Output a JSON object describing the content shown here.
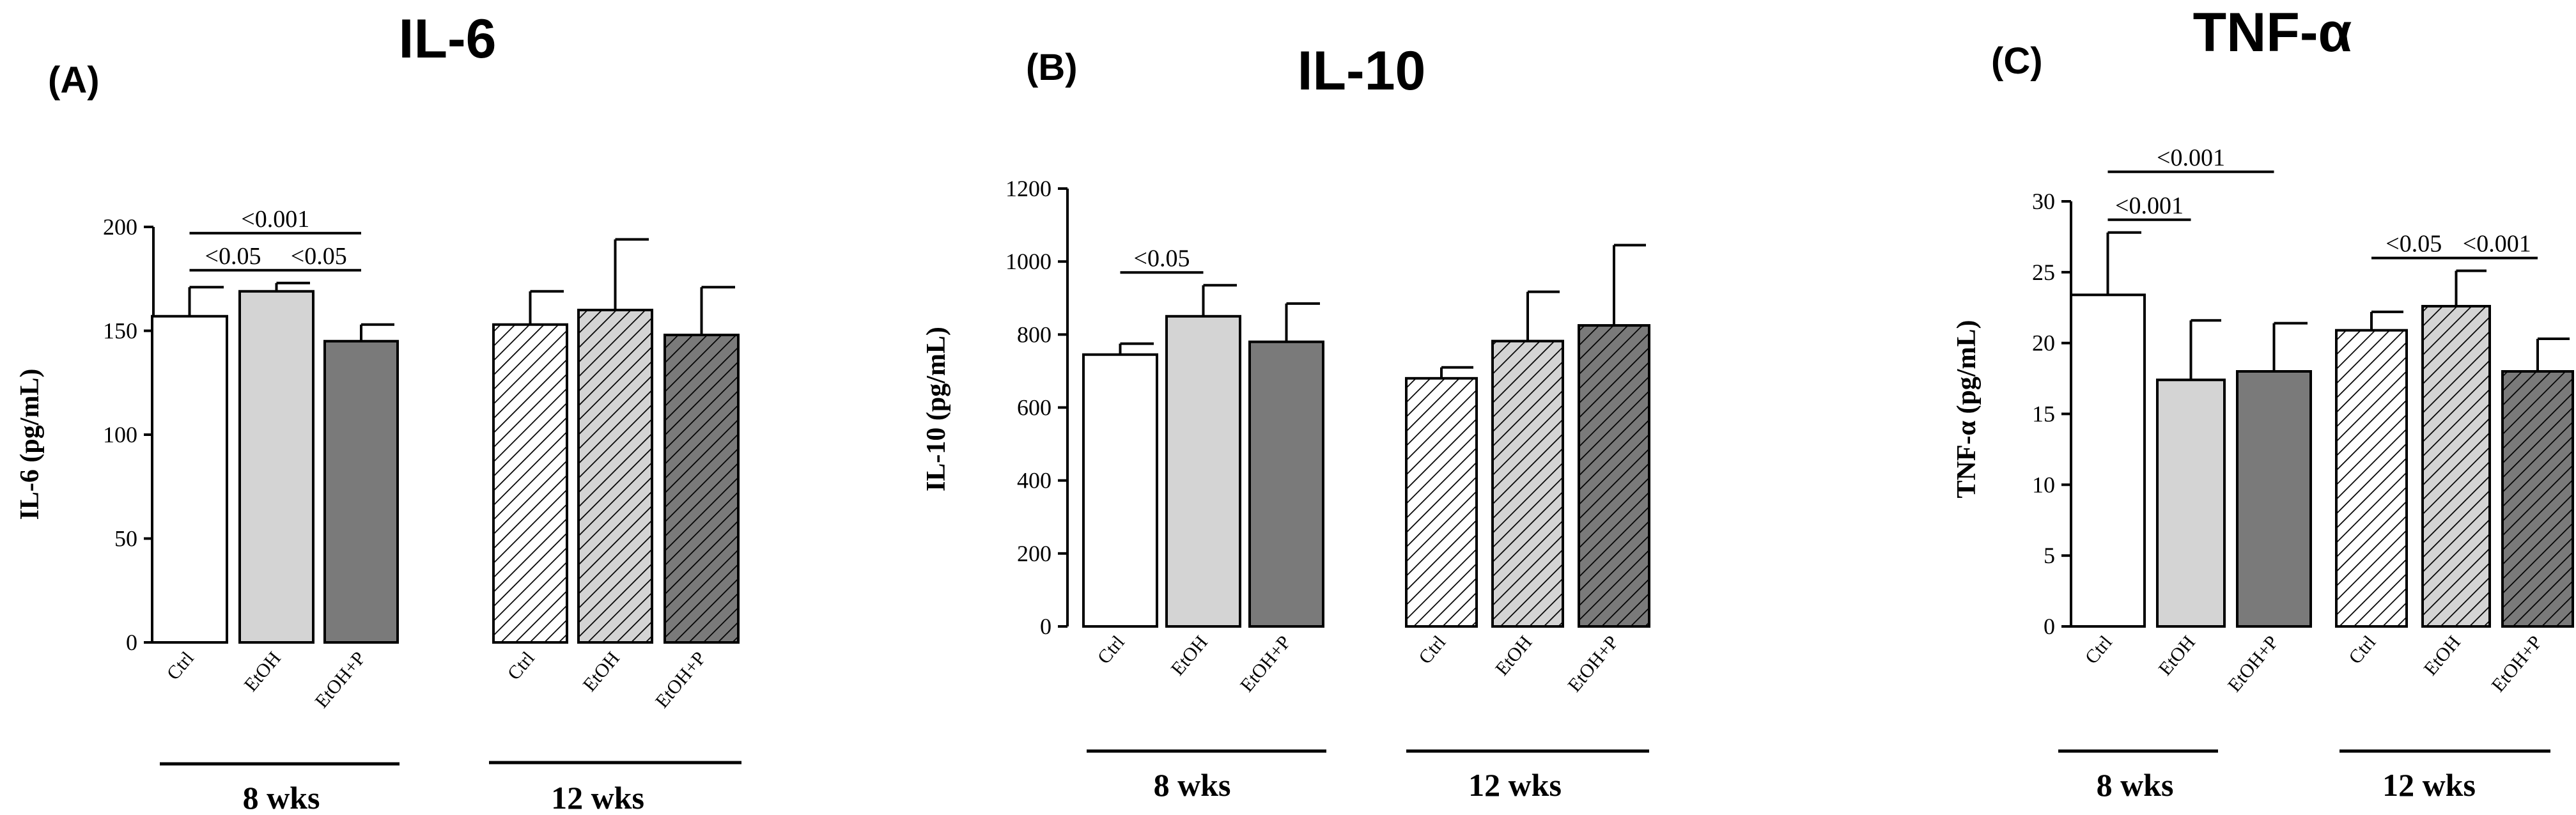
{
  "chart_data": [
    {
      "type": "bar",
      "panel_label": "(A)",
      "title": "IL-6",
      "ylabel": "IL-6 (pg/mL)",
      "ylim": [
        0,
        200
      ],
      "yticks": [
        0,
        50,
        100,
        150,
        200
      ],
      "groups": [
        {
          "label": "8 wks",
          "categories": [
            "Ctrl",
            "EtOH",
            "EtOH+P"
          ],
          "values": [
            157,
            169,
            145
          ],
          "errors": [
            14,
            4,
            8
          ],
          "fills": [
            "white",
            "lightgray",
            "darkgray"
          ]
        },
        {
          "label": "12 wks",
          "categories": [
            "Ctrl",
            "EtOH",
            "EtOH+P"
          ],
          "values": [
            153,
            160,
            148
          ],
          "errors": [
            16,
            34,
            23
          ],
          "fills": [
            "hatch-white",
            "hatch-lightgray",
            "hatch-darkgray"
          ]
        }
      ],
      "significance": [
        {
          "text": "<0.05",
          "from": [
            0,
            0
          ],
          "to": [
            0,
            1
          ],
          "level": 1
        },
        {
          "text": "<0.05",
          "from": [
            0,
            1
          ],
          "to": [
            0,
            2
          ],
          "level": 1
        },
        {
          "text": "<0.001",
          "from": [
            0,
            0
          ],
          "to": [
            0,
            2
          ],
          "level": 2
        }
      ]
    },
    {
      "type": "bar",
      "panel_label": "(B)",
      "title": "IL-10",
      "ylabel": "IL-10 (pg/mL)",
      "ylim": [
        0,
        1200
      ],
      "yticks": [
        0,
        200,
        400,
        600,
        800,
        1000,
        1200
      ],
      "groups": [
        {
          "label": "8 wks",
          "categories": [
            "Ctrl",
            "EtOH",
            "EtOH+P"
          ],
          "values": [
            745,
            850,
            780
          ],
          "errors": [
            30,
            85,
            105
          ],
          "fills": [
            "white",
            "lightgray",
            "darkgray"
          ]
        },
        {
          "label": "12 wks",
          "categories": [
            "Ctrl",
            "EtOH",
            "EtOH+P"
          ],
          "values": [
            680,
            782,
            825
          ],
          "errors": [
            30,
            135,
            220
          ],
          "fills": [
            "hatch-white",
            "hatch-lightgray",
            "hatch-darkgray"
          ]
        }
      ],
      "significance": [
        {
          "text": "<0.05",
          "from": [
            0,
            0
          ],
          "to": [
            0,
            1
          ],
          "level": 1
        }
      ]
    },
    {
      "type": "bar",
      "panel_label": "(C)",
      "title": "TNF-α",
      "ylabel": "TNF-α (pg/mL)",
      "ylim": [
        0,
        30
      ],
      "yticks": [
        0,
        5,
        10,
        15,
        20,
        25,
        30
      ],
      "groups": [
        {
          "label": "8 wks",
          "categories": [
            "Ctrl",
            "EtOH",
            "EtOH+P"
          ],
          "values": [
            23.4,
            17.4,
            18.0
          ],
          "errors": [
            4.4,
            4.2,
            3.4
          ],
          "fills": [
            "white",
            "lightgray",
            "darkgray"
          ]
        },
        {
          "label": "12 wks",
          "categories": [
            "Ctrl",
            "EtOH",
            "EtOH+P"
          ],
          "values": [
            20.9,
            22.6,
            18.0
          ],
          "errors": [
            1.3,
            2.5,
            2.3
          ],
          "fills": [
            "hatch-white",
            "hatch-lightgray",
            "hatch-darkgray"
          ]
        }
      ],
      "significance": [
        {
          "text": "<0.001",
          "from": [
            0,
            0
          ],
          "to": [
            0,
            1
          ],
          "level": 1
        },
        {
          "text": "<0.001",
          "from": [
            0,
            0
          ],
          "to": [
            0,
            2
          ],
          "level": 2
        },
        {
          "text": "<0.05",
          "from": [
            1,
            0
          ],
          "to": [
            1,
            1
          ],
          "level": 1
        },
        {
          "text": "<0.001",
          "from": [
            1,
            1
          ],
          "to": [
            1,
            2
          ],
          "level": 1
        }
      ]
    }
  ],
  "colors": {
    "white": "#ffffff",
    "lightgray": "#d4d4d4",
    "darkgray": "#7a7a7a",
    "stroke": "#000000"
  }
}
